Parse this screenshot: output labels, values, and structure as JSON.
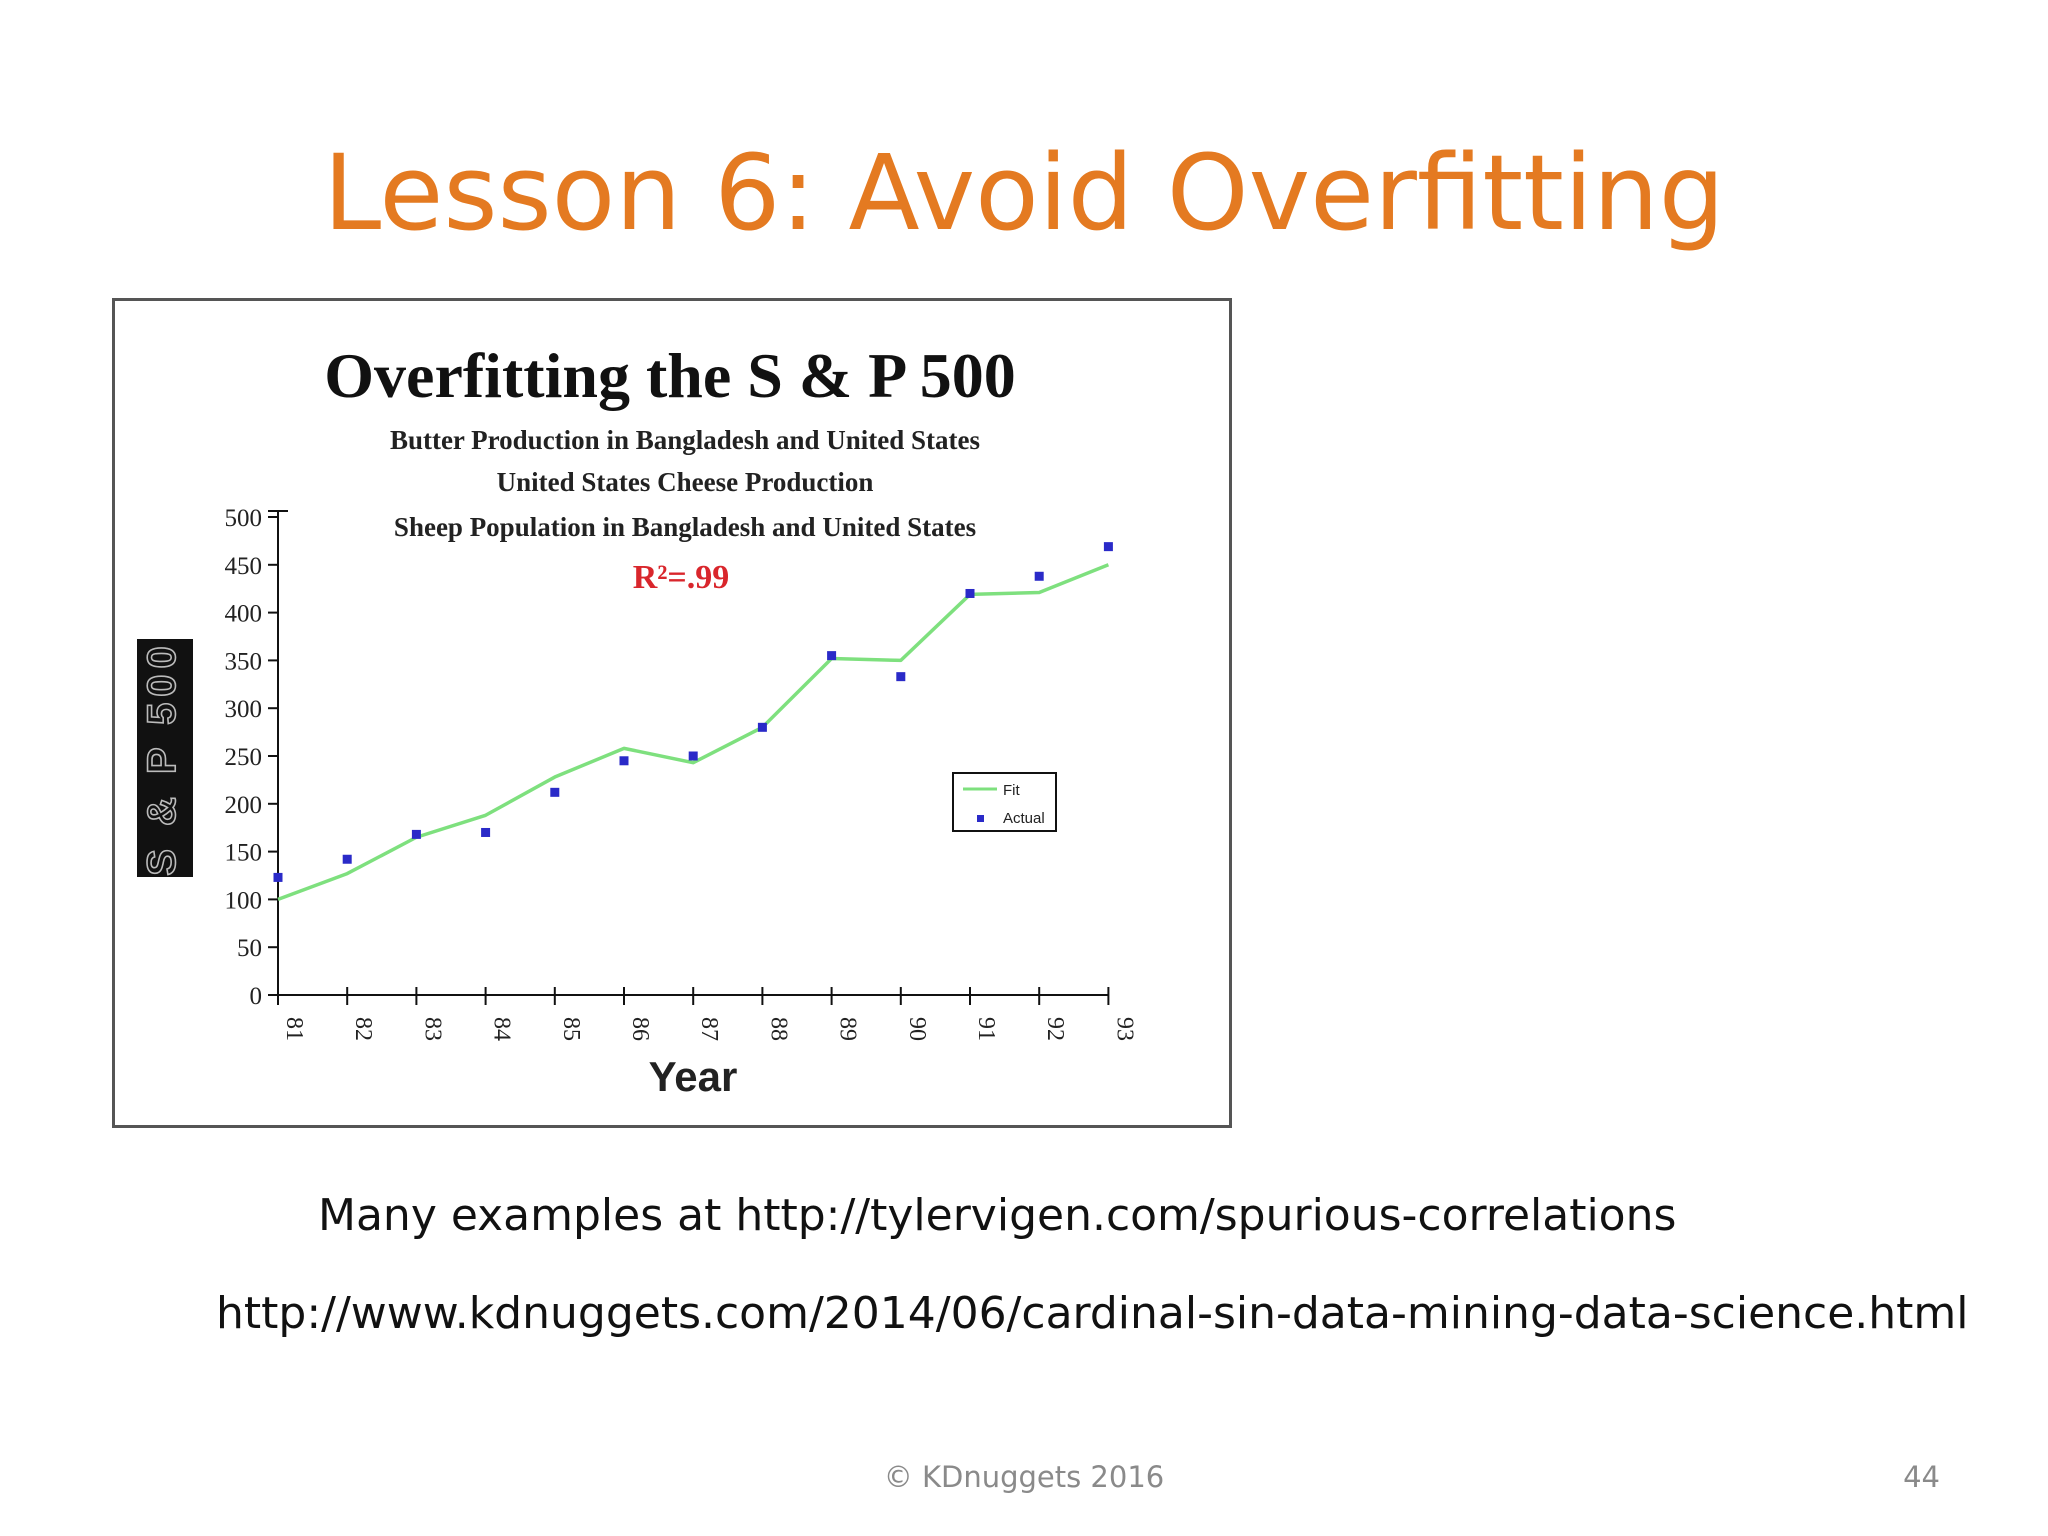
{
  "slide": {
    "title": "Lesson 6: Avoid Overfitting",
    "caption_1": "Many examples at http://tylervigen.com/spurious-correlations",
    "caption_2": "http://www.kdnuggets.com/2014/06/cardinal-sin-data-mining-data-science.html",
    "copyright": "© KDnuggets 2016",
    "page_number": "44"
  },
  "chart_data": {
    "type": "line",
    "title": "Overfitting the S & P 500",
    "subtitles": [
      "Butter Production in Bangladesh and United States",
      "United States Cheese Production",
      "Sheep Population in Bangladesh and United States"
    ],
    "annotation": "R²=.99",
    "xlabel": "Year",
    "ylabel": "S & P 500",
    "categories": [
      "81",
      "82",
      "83",
      "84",
      "85",
      "86",
      "87",
      "88",
      "89",
      "90",
      "91",
      "92",
      "93"
    ],
    "ylim": [
      0,
      500
    ],
    "yticks": [
      "0",
      "50",
      "100",
      "150",
      "200",
      "250",
      "300",
      "350",
      "400",
      "450",
      "500"
    ],
    "series": [
      {
        "name": "Fit",
        "kind": "line",
        "color": "#7ee07e",
        "values": [
          100,
          127,
          165,
          188,
          228,
          258,
          243,
          280,
          352,
          350,
          419,
          421,
          450
        ]
      },
      {
        "name": "Actual",
        "kind": "markers",
        "color": "#2a2ac8",
        "values": [
          123,
          142,
          168,
          170,
          212,
          245,
          250,
          280,
          355,
          333,
          420,
          438,
          469
        ]
      }
    ],
    "legend_position": "lower-right",
    "grid": false
  }
}
